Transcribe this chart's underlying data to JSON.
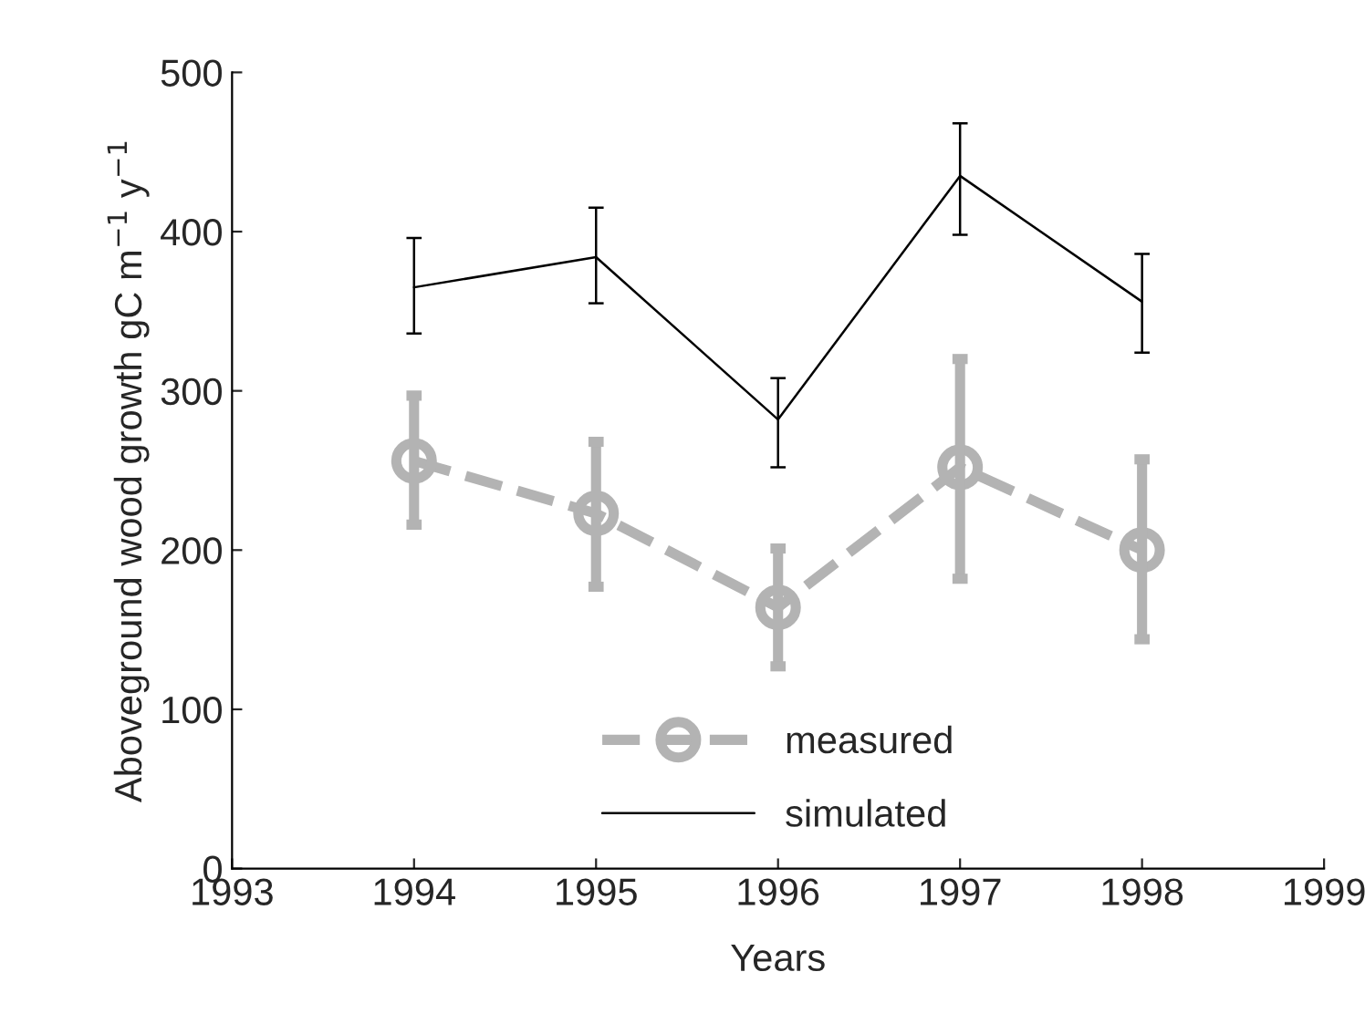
{
  "chart_data": {
    "type": "line",
    "xlabel": "Years",
    "ylabel": "Aboveground wood growth gC m$^{−1}$ y$^{−1}$",
    "x": [
      1994,
      1995,
      1996,
      1997,
      1998
    ],
    "xlim": [
      1993,
      1999
    ],
    "xticks": [
      1993,
      1994,
      1995,
      1996,
      1997,
      1998,
      1999
    ],
    "ylim": [
      0,
      500
    ],
    "yticks": [
      0,
      100,
      200,
      300,
      400,
      500
    ],
    "grid": false,
    "legend": "bottom",
    "series": [
      {
        "name": "measured",
        "color": "#b3b3b3",
        "marker": "circle",
        "line_style": "dashed",
        "values": [
          256,
          223,
          164,
          252,
          200
        ],
        "errors": [
          [
            216,
            297
          ],
          [
            177,
            268
          ],
          [
            127,
            201
          ],
          [
            182,
            320
          ],
          [
            144,
            257
          ]
        ]
      },
      {
        "name": "simulated",
        "color": "#000000",
        "marker": "none",
        "line_style": "solid",
        "values": [
          365,
          384,
          282,
          435,
          356
        ],
        "errors": [
          [
            336,
            396
          ],
          [
            355,
            415
          ],
          [
            252,
            308
          ],
          [
            398,
            468
          ],
          [
            324,
            386
          ]
        ]
      }
    ]
  }
}
